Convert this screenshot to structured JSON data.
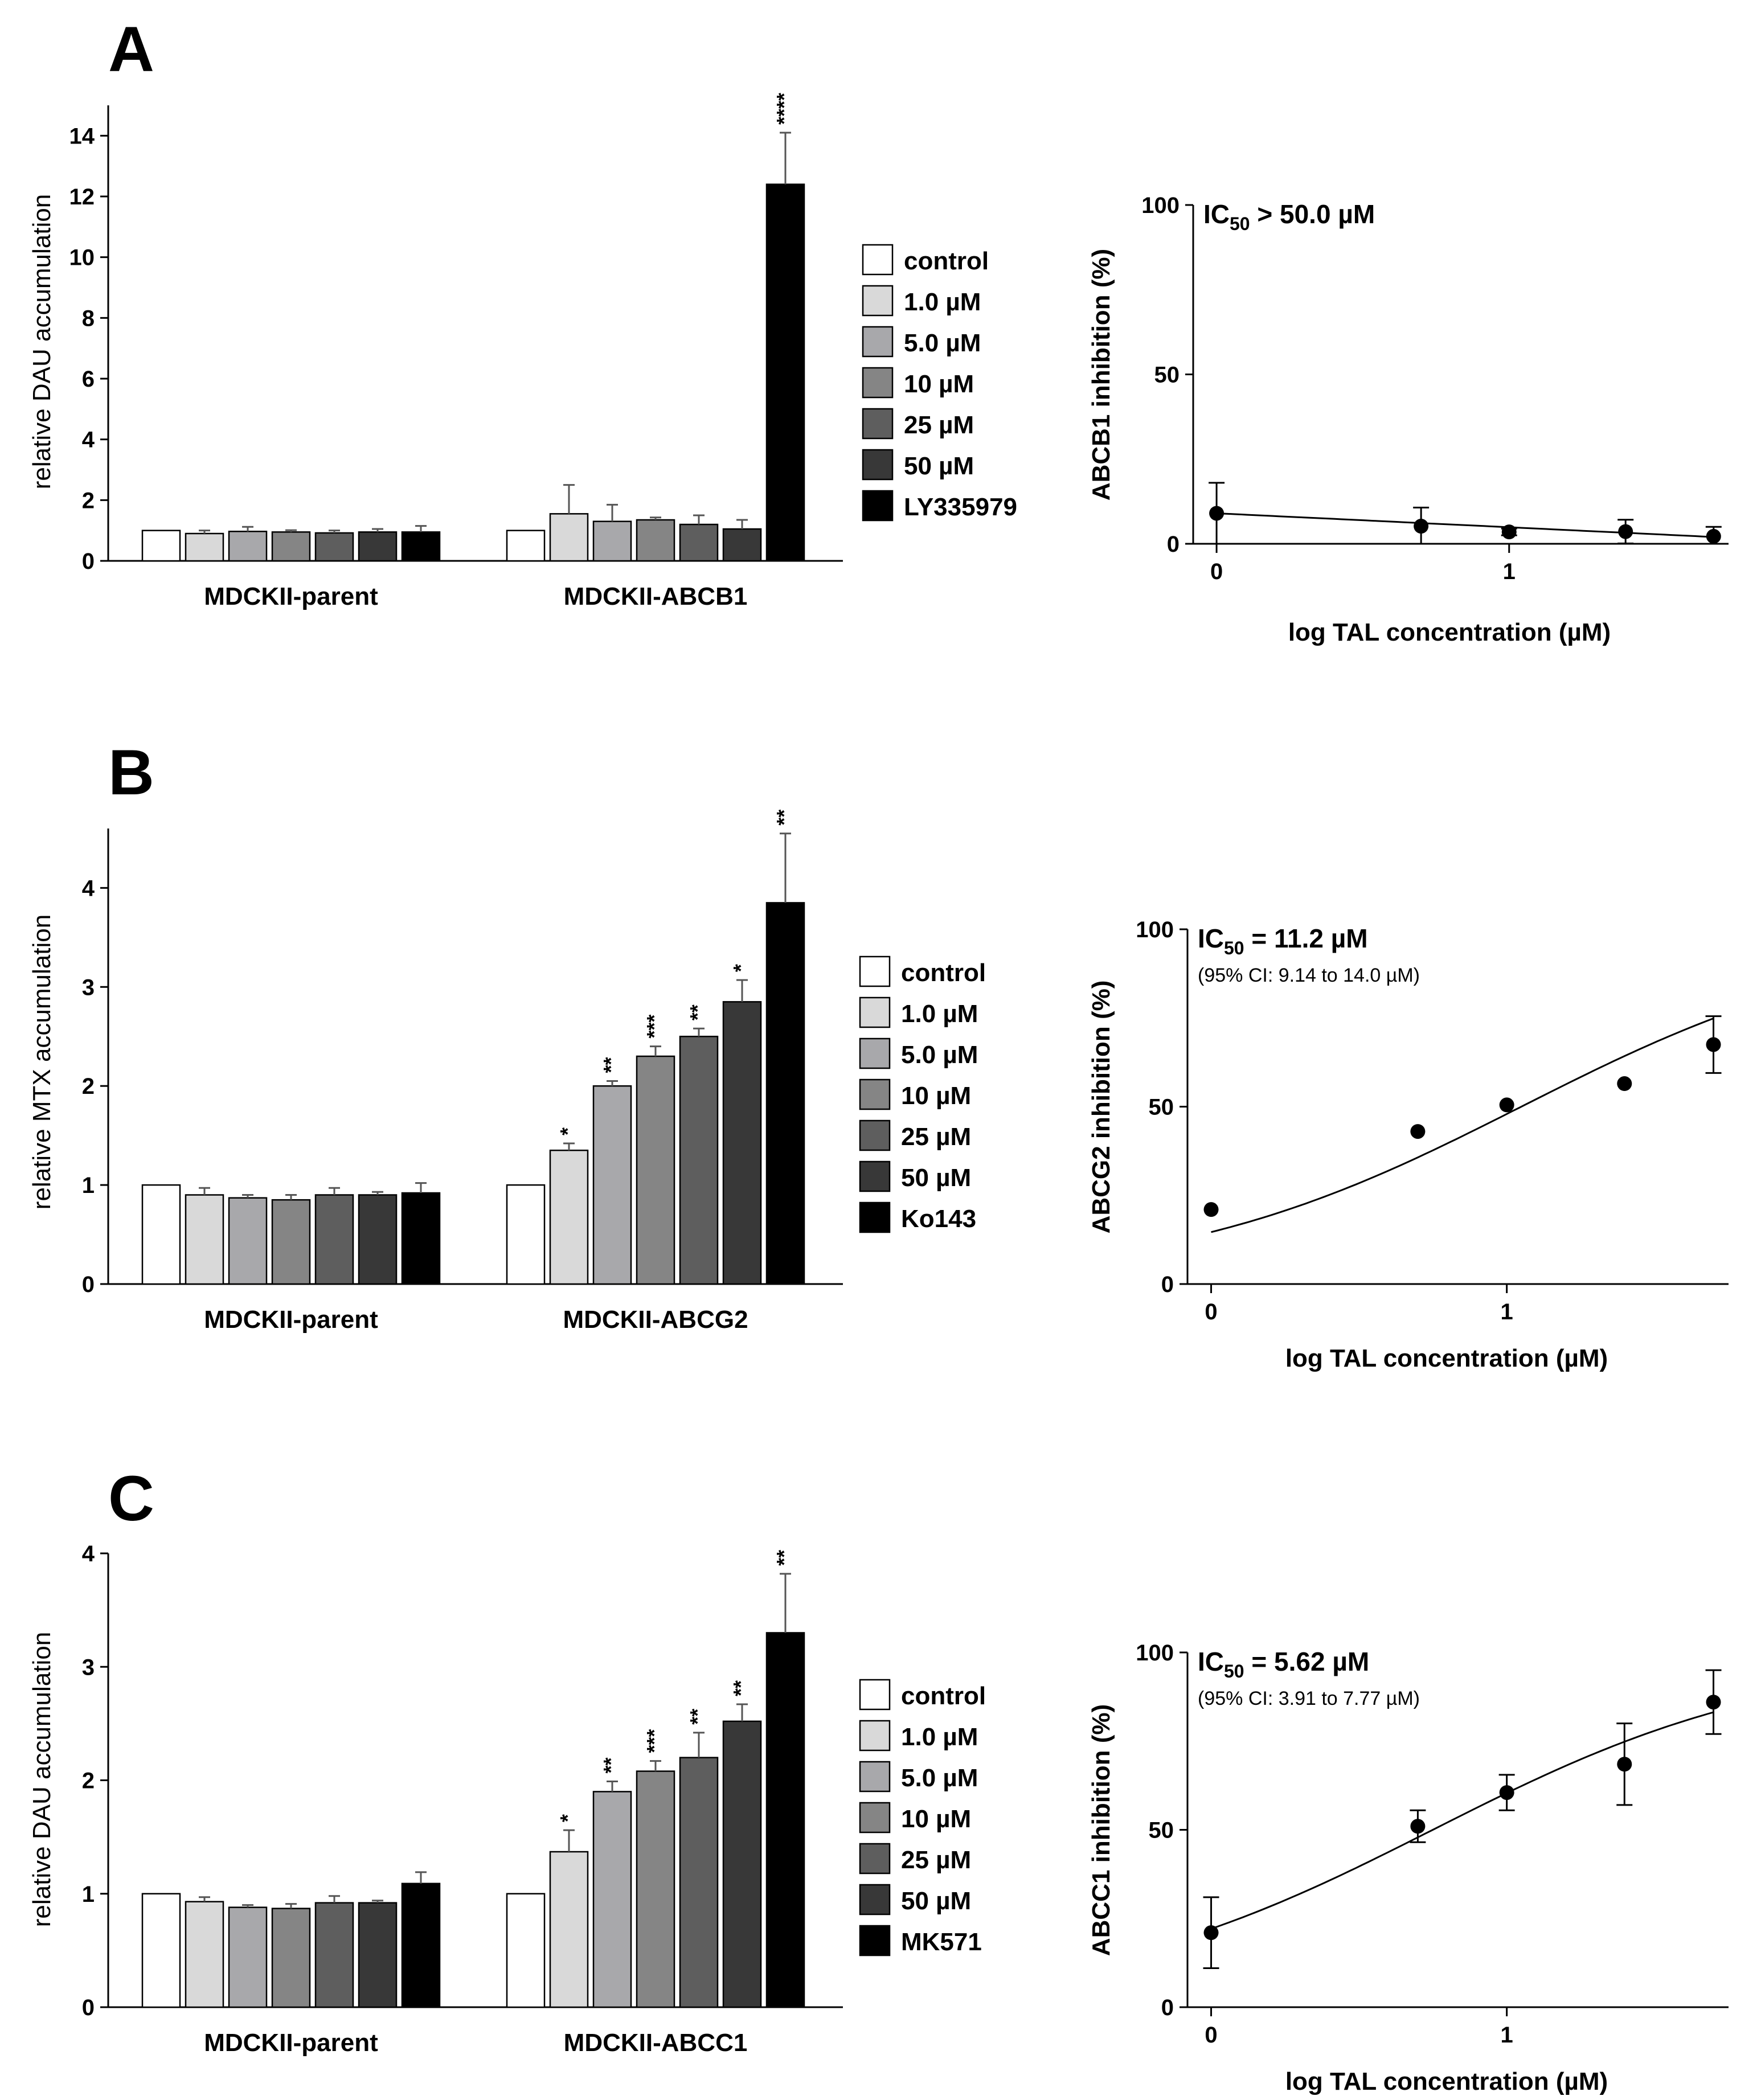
{
  "figure": {
    "series_colors": [
      "#ffffff",
      "#d9d9d9",
      "#a8a8ab",
      "#858585",
      "#5e5e5e",
      "#383838",
      "#000000"
    ],
    "panels": [
      {
        "letter": "A",
        "bar": {
          "ylabel": "relative DAU accumulation",
          "legend": [
            "control",
            "1.0 µM",
            "5.0 µM",
            "10 µM",
            "25 µM",
            "50 µM",
            "LY335979"
          ],
          "groups": [
            {
              "name": "MDCKII-parent",
              "values": [
                1.0,
                0.9,
                0.97,
                0.95,
                0.92,
                0.95,
                0.95
              ],
              "errors": [
                0.0,
                0.1,
                0.15,
                0.06,
                0.08,
                0.1,
                0.2
              ],
              "sig": [
                "",
                "",
                "",
                "",
                "",
                "",
                ""
              ]
            },
            {
              "name": "MDCKII-ABCB1",
              "values": [
                1.0,
                1.55,
                1.3,
                1.35,
                1.2,
                1.05,
                12.4
              ],
              "errors": [
                0.0,
                0.95,
                0.55,
                0.08,
                0.3,
                0.3,
                1.7
              ],
              "sig": [
                "",
                "",
                "",
                "",
                "",
                "",
                "****"
              ]
            }
          ]
        },
        "curve": {
          "ylabel": "ABCB1 inhibition (%)",
          "xlabel": "log TAL concentration (µM)",
          "ic50_prefix": "IC",
          "ic50_sub": "50",
          "ic50_value": " > 50.0 µM",
          "ci": "",
          "x": [
            0,
            0.699,
            1.0,
            1.398,
            1.699
          ],
          "y": [
            9,
            5.2,
            3.5,
            3.6,
            2.2
          ],
          "err": [
            9,
            5.5,
            1,
            3.5,
            2.8
          ],
          "fit": {
            "type": "linear",
            "y0": 9,
            "y1": 2
          }
        }
      },
      {
        "letter": "B",
        "bar": {
          "ylabel": "relative MTX accumulation",
          "legend": [
            "control",
            "1.0 µM",
            "5.0 µM",
            "10 µM",
            "25 µM",
            "50 µM",
            "Ko143"
          ],
          "groups": [
            {
              "name": "MDCKII-parent",
              "values": [
                1.0,
                0.9,
                0.87,
                0.85,
                0.9,
                0.9,
                0.92
              ],
              "errors": [
                0.0,
                0.07,
                0.03,
                0.05,
                0.07,
                0.03,
                0.1
              ],
              "sig": [
                "",
                "",
                "",
                "",
                "",
                "",
                ""
              ]
            },
            {
              "name": "MDCKII-ABCG2",
              "values": [
                1.0,
                1.35,
                2.0,
                2.3,
                2.5,
                2.85,
                3.85
              ],
              "errors": [
                0.0,
                0.07,
                0.05,
                0.1,
                0.08,
                0.22,
                0.7
              ],
              "sig": [
                "",
                "*",
                "**",
                "***",
                "**",
                "*",
                "**"
              ]
            }
          ]
        },
        "curve": {
          "ylabel": "ABCG2 inhibition (%)",
          "xlabel": "log TAL concentration (µM)",
          "ic50_prefix": "IC",
          "ic50_sub": "50",
          "ic50_value": " =  11.2 µM",
          "ci": "(95% CI: 9.14 to 14.0 µM)",
          "x": [
            0,
            0.699,
            1.0,
            1.398,
            1.699
          ],
          "y": [
            21,
            43,
            50.5,
            56.5,
            67.5
          ],
          "err": [
            0,
            0,
            0,
            0,
            8
          ],
          "fit": {
            "type": "logistic",
            "ic50": 11.2
          }
        }
      },
      {
        "letter": "C",
        "bar": {
          "ylabel": "relative DAU accumulation",
          "legend": [
            "control",
            "1.0 µM",
            "5.0 µM",
            "10 µM",
            "25 µM",
            "50 µM",
            "MK571"
          ],
          "groups": [
            {
              "name": "MDCKII-parent",
              "values": [
                1.0,
                0.93,
                0.88,
                0.87,
                0.92,
                0.92,
                1.09
              ],
              "errors": [
                0.0,
                0.04,
                0.02,
                0.04,
                0.06,
                0.02,
                0.1
              ],
              "sig": [
                "",
                "",
                "",
                "",
                "",
                "",
                ""
              ]
            },
            {
              "name": "MDCKII-ABCC1",
              "values": [
                1.0,
                1.37,
                1.9,
                2.08,
                2.2,
                2.52,
                3.3
              ],
              "errors": [
                0.0,
                0.19,
                0.09,
                0.09,
                0.22,
                0.15,
                0.52
              ],
              "sig": [
                "",
                "*",
                "**",
                "***",
                "**",
                "**",
                "**"
              ]
            }
          ]
        },
        "curve": {
          "ylabel": "ABCC1 inhibition (%)",
          "xlabel": "log TAL concentration (µM)",
          "ic50_prefix": "IC",
          "ic50_sub": "50",
          "ic50_value": " =  5.62 µM",
          "ci": "(95% CI: 3.91 to 7.77 µM)",
          "x": [
            0,
            0.699,
            1.0,
            1.398,
            1.699
          ],
          "y": [
            21,
            51,
            60.5,
            68.5,
            86
          ],
          "err": [
            10,
            4.5,
            5,
            11.5,
            9
          ],
          "fit": {
            "type": "logistic",
            "ic50": 5.62
          }
        }
      }
    ]
  },
  "chart_data": [
    {
      "type": "bar",
      "panel": "A",
      "title": "",
      "ylabel": "relative DAU accumulation",
      "categories": [
        "MDCKII-parent",
        "MDCKII-ABCB1"
      ],
      "ylim": [
        0,
        15
      ],
      "yticks": [
        0,
        2,
        4,
        6,
        8,
        10,
        12,
        14
      ],
      "series": [
        {
          "name": "control",
          "values": [
            1.0,
            1.0
          ]
        },
        {
          "name": "1.0 µM",
          "values": [
            0.9,
            1.55
          ]
        },
        {
          "name": "5.0 µM",
          "values": [
            0.97,
            1.3
          ]
        },
        {
          "name": "10 µM",
          "values": [
            0.95,
            1.35
          ]
        },
        {
          "name": "25 µM",
          "values": [
            0.92,
            1.2
          ]
        },
        {
          "name": "50 µM",
          "values": [
            0.95,
            1.05
          ]
        },
        {
          "name": "LY335979",
          "values": [
            0.95,
            12.4
          ]
        }
      ]
    },
    {
      "type": "scatter",
      "panel": "A",
      "xlabel": "log TAL concentration (µM)",
      "ylabel": "ABCB1 inhibition (%)",
      "annotation": "IC50 > 50.0 µM",
      "xlim": [
        -0.08,
        1.75
      ],
      "ylim": [
        0,
        100
      ],
      "xticks": [
        0,
        1
      ],
      "yticks": [
        0,
        50,
        100
      ],
      "x": [
        0,
        0.699,
        1.0,
        1.398,
        1.699
      ],
      "y": [
        9,
        5.2,
        3.5,
        3.6,
        2.2
      ]
    },
    {
      "type": "bar",
      "panel": "B",
      "title": "",
      "ylabel": "relative MTX accumulation",
      "categories": [
        "MDCKII-parent",
        "MDCKII-ABCG2"
      ],
      "ylim": [
        0,
        4.6
      ],
      "yticks": [
        0,
        1,
        2,
        3,
        4
      ],
      "series": [
        {
          "name": "control",
          "values": [
            1.0,
            1.0
          ]
        },
        {
          "name": "1.0 µM",
          "values": [
            0.9,
            1.35
          ]
        },
        {
          "name": "5.0 µM",
          "values": [
            0.87,
            2.0
          ]
        },
        {
          "name": "10 µM",
          "values": [
            0.85,
            2.3
          ]
        },
        {
          "name": "25 µM",
          "values": [
            0.9,
            2.5
          ]
        },
        {
          "name": "50 µM",
          "values": [
            0.9,
            2.85
          ]
        },
        {
          "name": "Ko143",
          "values": [
            0.92,
            3.85
          ]
        }
      ]
    },
    {
      "type": "scatter",
      "panel": "B",
      "xlabel": "log TAL concentration (µM)",
      "ylabel": "ABCG2 inhibition (%)",
      "annotation": "IC50 = 11.2 µM (95% CI: 9.14 to 14.0 µM)",
      "xlim": [
        -0.08,
        1.75
      ],
      "ylim": [
        0,
        100
      ],
      "xticks": [
        0,
        1
      ],
      "yticks": [
        0,
        50,
        100
      ],
      "x": [
        0,
        0.699,
        1.0,
        1.398,
        1.699
      ],
      "y": [
        21,
        43,
        50.5,
        56.5,
        67.5
      ]
    },
    {
      "type": "bar",
      "panel": "C",
      "title": "",
      "ylabel": "relative DAU accumulation",
      "categories": [
        "MDCKII-parent",
        "MDCKII-ABCC1"
      ],
      "ylim": [
        0,
        4
      ],
      "yticks": [
        0,
        1,
        2,
        3,
        4
      ],
      "series": [
        {
          "name": "control",
          "values": [
            1.0,
            1.0
          ]
        },
        {
          "name": "1.0 µM",
          "values": [
            0.93,
            1.37
          ]
        },
        {
          "name": "5.0 µM",
          "values": [
            0.88,
            1.9
          ]
        },
        {
          "name": "10 µM",
          "values": [
            0.87,
            2.08
          ]
        },
        {
          "name": "25 µM",
          "values": [
            0.92,
            2.2
          ]
        },
        {
          "name": "50 µM",
          "values": [
            0.92,
            2.52
          ]
        },
        {
          "name": "MK571",
          "values": [
            1.09,
            3.3
          ]
        }
      ]
    },
    {
      "type": "scatter",
      "panel": "C",
      "xlabel": "log TAL concentration (µM)",
      "ylabel": "ABCC1 inhibition (%)",
      "annotation": "IC50 = 5.62 µM (95% CI: 3.91 to 7.77 µM)",
      "xlim": [
        -0.08,
        1.75
      ],
      "ylim": [
        0,
        100
      ],
      "xticks": [
        0,
        1
      ],
      "yticks": [
        0,
        50,
        100
      ],
      "x": [
        0,
        0.699,
        1.0,
        1.398,
        1.699
      ],
      "y": [
        21,
        51,
        60.5,
        68.5,
        86
      ]
    }
  ]
}
